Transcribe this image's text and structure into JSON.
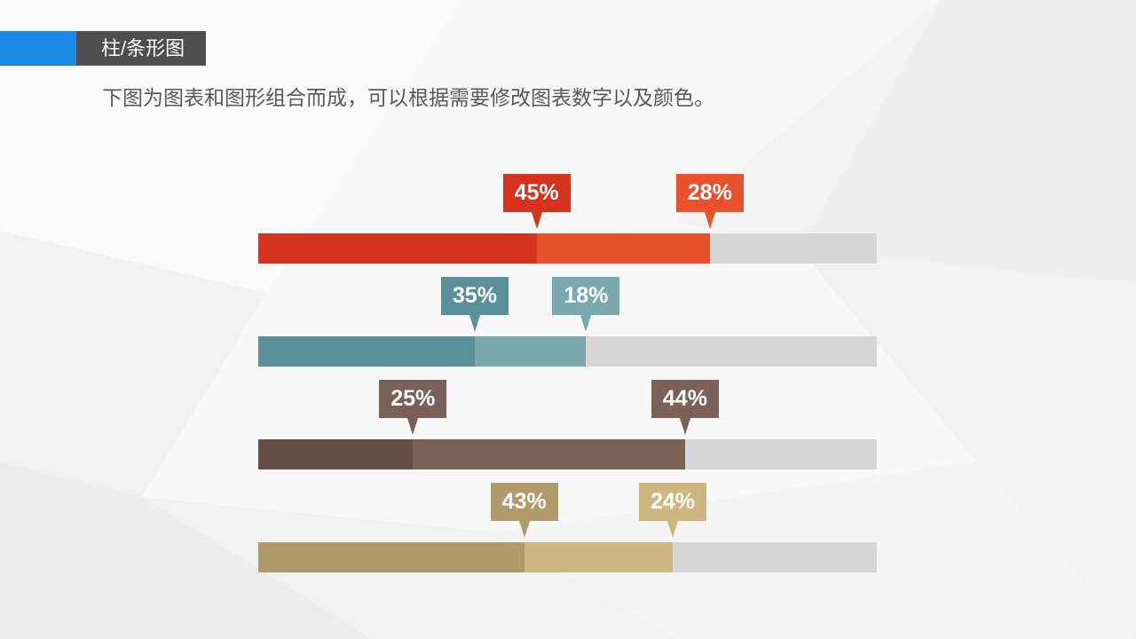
{
  "header": {
    "title": "柱/条形图",
    "subtitle": "下图为图表和图形组合而成，可以根据需要修改图表数字以及颜色。",
    "accent_color": "#1E88E5",
    "title_background": "#4E4E4E"
  },
  "chart_data": {
    "type": "bar",
    "horizontal": true,
    "stacked": true,
    "grid": false,
    "xlim": [
      0,
      100
    ],
    "track_color": "#D5D6D5",
    "series": [
      {
        "values": [
          45,
          35,
          25,
          43
        ],
        "labels": [
          "45%",
          "35%",
          "25%",
          "43%"
        ],
        "colors": [
          "#D5331D",
          "#5A909A",
          "#644F48",
          "#B09A69"
        ],
        "label_colors": [
          "#D5331D",
          "#5A909A",
          "#7A6058",
          "#B09A69"
        ]
      },
      {
        "values": [
          28,
          18,
          44,
          24
        ],
        "labels": [
          "28%",
          "18%",
          "44%",
          "24%"
        ],
        "colors": [
          "#E9512D",
          "#79A8AE",
          "#7B6158",
          "#CDB67F"
        ],
        "label_colors": [
          "#E9512D",
          "#79A8AE",
          "#7B6158",
          "#CDB67F"
        ]
      }
    ]
  }
}
